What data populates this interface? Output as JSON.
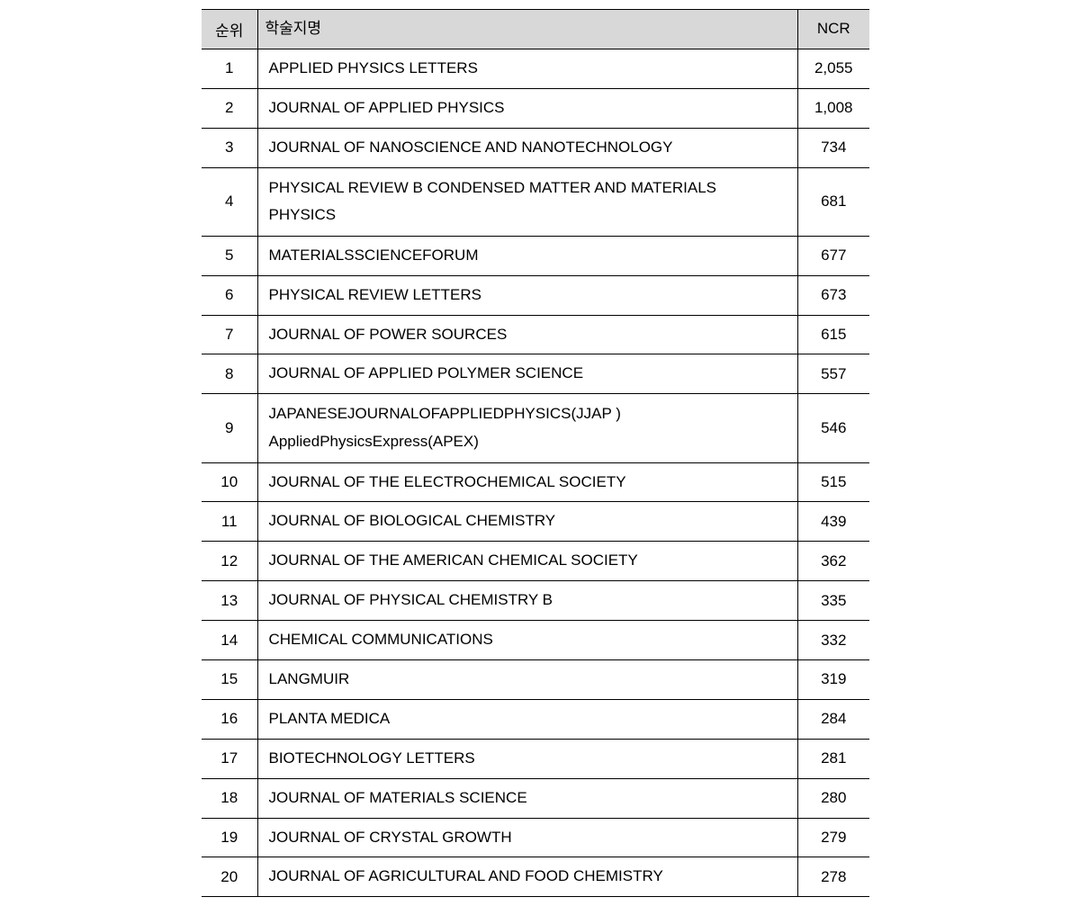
{
  "table": {
    "headers": {
      "rank": "순위",
      "journal": "학술지명",
      "ncr": "NCR"
    },
    "rows": [
      {
        "rank": "1",
        "journal": "APPLIED  PHYSICS LETTERS",
        "ncr": "2,055"
      },
      {
        "rank": "2",
        "journal": "JOURNAL OF  APPLIED PHYSICS",
        "ncr": "1,008"
      },
      {
        "rank": "3",
        "journal": "JOURNAL OF  NANOSCIENCE AND NANOTECHNOLOGY",
        "ncr": "734"
      },
      {
        "rank": "4",
        "journal": "PHYSICAL  REVIEW B CONDENSED MATTER AND MATERIALS PHYSICS",
        "ncr": "681"
      },
      {
        "rank": "5",
        "journal": "MATERIALSSCIENCEFORUM",
        "ncr": "677"
      },
      {
        "rank": "6",
        "journal": "PHYSICAL  REVIEW LETTERS",
        "ncr": "673"
      },
      {
        "rank": "7",
        "journal": "JOURNAL OF  POWER SOURCES",
        "ncr": "615"
      },
      {
        "rank": "8",
        "journal": "JOURNAL OF  APPLIED POLYMER SCIENCE",
        "ncr": "557"
      },
      {
        "rank": "9",
        "journal": "JAPANESEJOURNALOFAPPLIEDPHYSICS(JJAP ) AppliedPhysicsExpress(APEX)",
        "ncr": "546"
      },
      {
        "rank": "10",
        "journal": "JOURNAL OF THE  ELECTROCHEMICAL SOCIETY",
        "ncr": "515"
      },
      {
        "rank": "11",
        "journal": "JOURNAL OF BIOLOGICAL CHEMISTRY",
        "ncr": "439"
      },
      {
        "rank": "12",
        "journal": "JOURNAL OF THE  AMERICAN CHEMICAL SOCIETY",
        "ncr": "362"
      },
      {
        "rank": "13",
        "journal": "JOURNAL OF  PHYSICAL CHEMISTRY B",
        "ncr": "335"
      },
      {
        "rank": "14",
        "journal": "CHEMICAL  COMMUNICATIONS",
        "ncr": "332"
      },
      {
        "rank": "15",
        "journal": "LANGMUIR",
        "ncr": "319"
      },
      {
        "rank": "16",
        "journal": "PLANTA MEDICA",
        "ncr": "284"
      },
      {
        "rank": "17",
        "journal": "BIOTECHNOLOGY  LETTERS",
        "ncr": "281"
      },
      {
        "rank": "18",
        "journal": "JOURNAL OF  MATERIALS SCIENCE",
        "ncr": "280"
      },
      {
        "rank": "19",
        "journal": "JOURNAL OF  CRYSTAL GROWTH",
        "ncr": "279"
      },
      {
        "rank": "20",
        "journal": "JOURNAL OF AGRICULTURAL AND FOOD CHEMISTRY",
        "ncr": "278"
      }
    ],
    "styling": {
      "header_bg": "#d8d8d8",
      "border_color": "#000000",
      "text_color": "#000000",
      "background_color": "#ffffff",
      "font_size": 17,
      "col_widths": {
        "rank": 62,
        "journal": 600,
        "ncr": 80
      },
      "cell_alignment": {
        "rank": "center",
        "journal": "left",
        "ncr": "center"
      }
    }
  }
}
